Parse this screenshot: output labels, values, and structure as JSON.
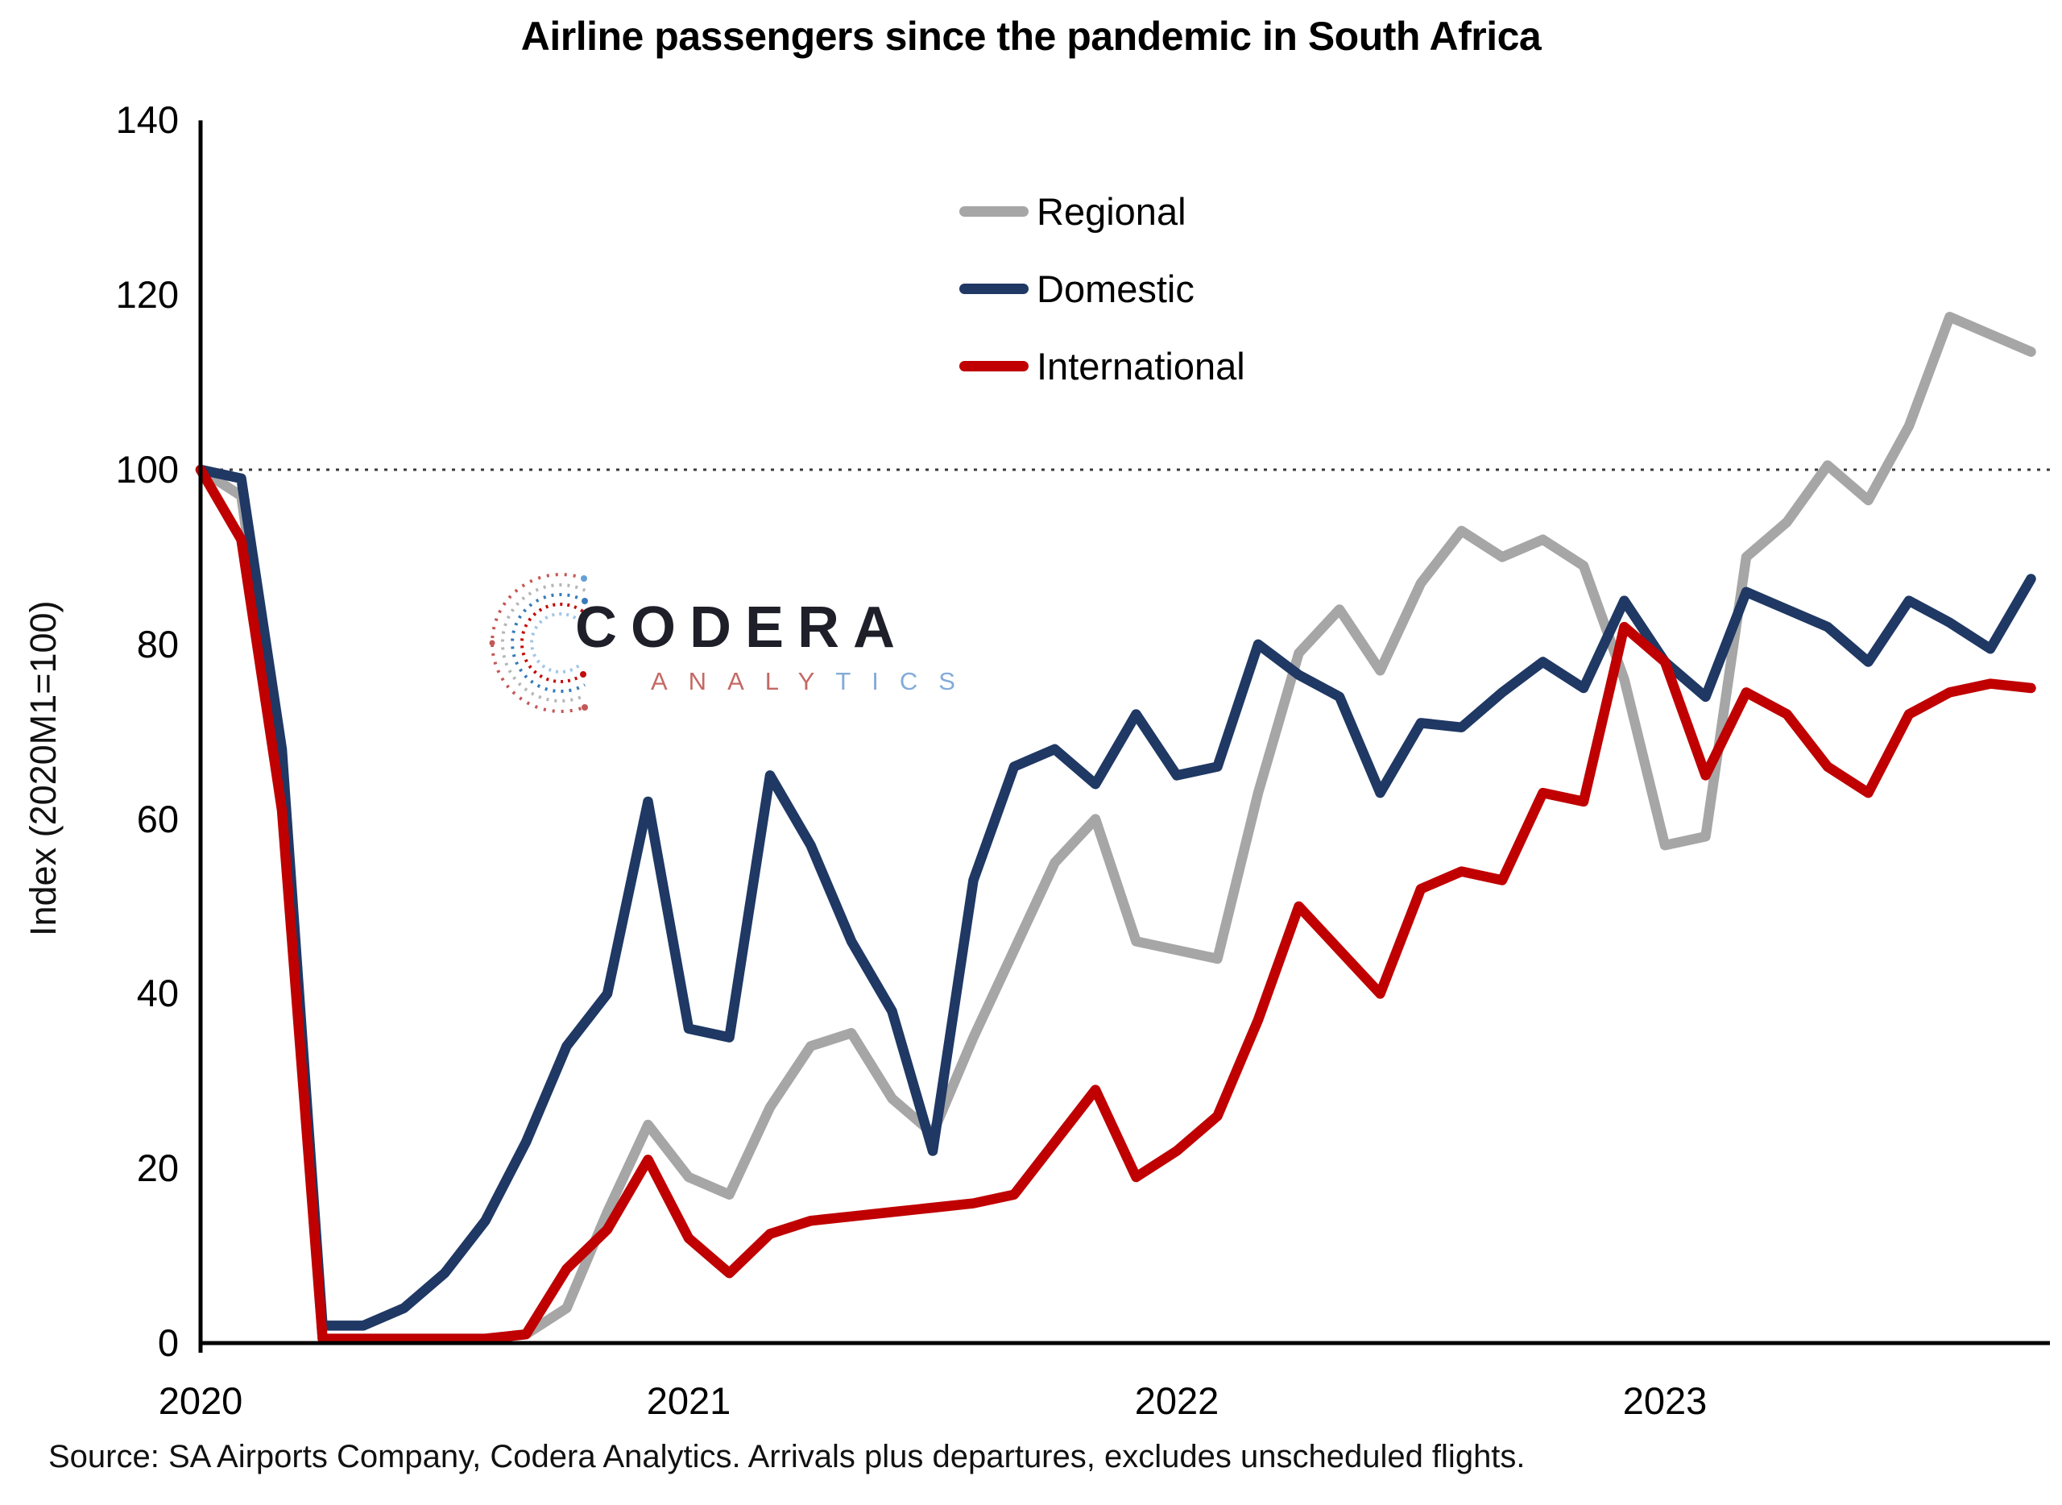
{
  "title": "Airline passengers since the pandemic in South Africa",
  "source_note": "Source: SA Airports Company, Codera Analytics. Arrivals plus departures, excludes unscheduled flights.",
  "watermark": {
    "brand": "CODERA",
    "subbrand_left": "ANALY",
    "subbrand_right": "TICS"
  },
  "legend": {
    "regional_label": "Regional",
    "domestic_label": "Domestic",
    "international_label": "International"
  },
  "colors": {
    "regional": "#a6a6a6",
    "domestic": "#1f3864",
    "international": "#c00000",
    "reference_line": "#3a3a3a",
    "axis": "#000000"
  },
  "chart_data": {
    "type": "line",
    "title": "Airline passengers since the pandemic in South Africa",
    "xlabel": "",
    "ylabel": "Index (2020M1=100)",
    "ylim": [
      0,
      140
    ],
    "y_ticks": [
      0,
      20,
      40,
      60,
      80,
      100,
      120,
      140
    ],
    "reference_line_y": 100,
    "grid": "none except dotted horizontal reference line at 100",
    "legend_position": "upper-center, stacked vertically",
    "x_year_labels": [
      "2020",
      "2021",
      "2022",
      "2023"
    ],
    "x_monthly": [
      "2020-01",
      "2020-02",
      "2020-03",
      "2020-04",
      "2020-05",
      "2020-06",
      "2020-07",
      "2020-08",
      "2020-09",
      "2020-10",
      "2020-11",
      "2020-12",
      "2021-01",
      "2021-02",
      "2021-03",
      "2021-04",
      "2021-05",
      "2021-06",
      "2021-07",
      "2021-08",
      "2021-09",
      "2021-10",
      "2021-11",
      "2021-12",
      "2022-01",
      "2022-02",
      "2022-03",
      "2022-04",
      "2022-05",
      "2022-06",
      "2022-07",
      "2022-08",
      "2022-09",
      "2022-10",
      "2022-11",
      "2022-12",
      "2023-01",
      "2023-02",
      "2023-03",
      "2023-04",
      "2023-05",
      "2023-06",
      "2023-07",
      "2023-08",
      "2023-09",
      "2023-10"
    ],
    "series": [
      {
        "name": "Regional",
        "color": "#a6a6a6",
        "values": [
          100,
          97,
          64,
          0.5,
          0.5,
          0.5,
          0.5,
          0.5,
          1,
          4,
          15,
          25,
          19,
          17,
          27,
          34,
          35.5,
          28,
          24,
          35,
          45,
          55,
          60,
          46,
          45,
          44,
          63,
          79,
          84,
          77,
          87,
          93,
          90,
          92,
          89,
          76,
          57,
          58,
          90,
          94,
          100.5,
          96.5,
          105,
          117.5,
          115.5,
          113.5
        ]
      },
      {
        "name": "Domestic",
        "color": "#1f3864",
        "values": [
          100,
          99,
          68,
          2,
          2,
          4,
          8,
          14,
          23,
          34,
          40,
          62,
          36,
          35,
          65,
          57,
          46,
          38,
          22,
          53,
          66,
          68,
          64,
          72,
          65,
          66,
          80,
          76.5,
          74,
          63,
          71,
          70.5,
          74.5,
          78,
          75,
          85,
          78,
          74,
          86,
          84,
          82,
          78,
          85,
          82.5,
          79.5,
          87.5
        ]
      },
      {
        "name": "International",
        "color": "#c00000",
        "values": [
          100,
          92,
          61,
          0.5,
          0.5,
          0.5,
          0.5,
          0.5,
          1,
          8.5,
          13,
          21,
          12,
          8,
          12.5,
          14,
          14.5,
          15,
          15.5,
          16,
          17,
          23,
          29,
          19,
          22,
          26,
          37,
          50,
          45,
          40,
          52,
          54,
          53,
          63,
          62,
          82,
          78,
          65,
          74.5,
          72,
          66,
          63,
          72,
          74.5,
          75.5,
          75
        ]
      }
    ]
  },
  "plot_geometry_note": "index 100 dotted line, y-axis left, x-axis bottom"
}
